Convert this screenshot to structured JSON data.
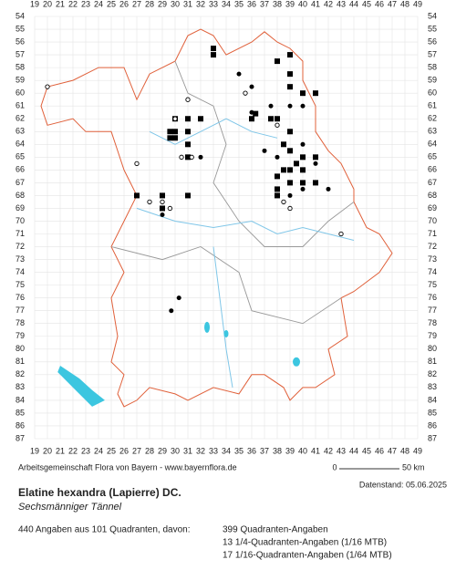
{
  "grid": {
    "columns": [
      19,
      20,
      21,
      22,
      23,
      24,
      25,
      26,
      27,
      28,
      29,
      30,
      31,
      32,
      33,
      34,
      35,
      36,
      37,
      38,
      39,
      40,
      41,
      42,
      43,
      44,
      45,
      46,
      47,
      48,
      49
    ],
    "rows": [
      54,
      55,
      56,
      57,
      58,
      59,
      60,
      61,
      62,
      63,
      64,
      65,
      66,
      67,
      68,
      69,
      70,
      71,
      72,
      73,
      74,
      75,
      76,
      77,
      78,
      79,
      80,
      81,
      82,
      83,
      84,
      85,
      86,
      87
    ]
  },
  "credit": "Arbeitsgemeinschaft Flora von Bayern - www.bayernflora.de",
  "scale": {
    "start": "0",
    "end": "50 km"
  },
  "date": "Datenstand: 05.06.2025",
  "title": "Elatine hexandra (Lapierre) DC.",
  "subtitle": "Sechsmänniger Tännel",
  "summary": "440 Angaben aus 101 Quadranten, davon:",
  "counts": [
    "399 Quadranten-Angaben",
    "13 1/4-Quadranten-Angaben (1/16 MTB)",
    "17 1/16-Quadranten-Angaben (1/64 MTB)"
  ]
}
